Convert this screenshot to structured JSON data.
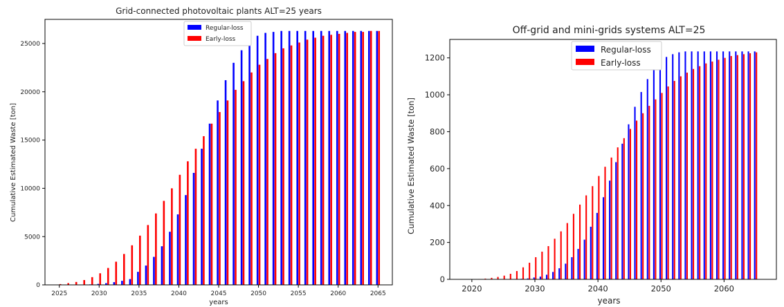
{
  "chart_data": [
    {
      "type": "bar",
      "title": "Grid-connected photovoltaic plants     ALT=25 years",
      "xlabel": "years",
      "ylabel": "Cumulative Estimated Waste [ton]",
      "xlim": [
        2023.2,
        2066.8
      ],
      "ylim": [
        0,
        27500
      ],
      "xticks": [
        2025,
        2030,
        2035,
        2040,
        2045,
        2050,
        2055,
        2060,
        2065
      ],
      "xtick_labels": [
        "2025",
        "2030",
        "2035",
        "2040",
        "2045",
        "2050",
        "2055",
        "2060",
        "2065"
      ],
      "yticks": [
        0,
        5000,
        10000,
        15000,
        20000,
        25000
      ],
      "ytick_labels": [
        "0",
        "5000",
        "10000",
        "15000",
        "20000",
        "25000"
      ],
      "grid": false,
      "legend_position": "top-center",
      "x": [
        2025,
        2026,
        2027,
        2028,
        2029,
        2030,
        2031,
        2032,
        2033,
        2034,
        2035,
        2036,
        2037,
        2038,
        2039,
        2040,
        2041,
        2042,
        2043,
        2044,
        2045,
        2046,
        2047,
        2048,
        2049,
        2050,
        2051,
        2052,
        2053,
        2054,
        2055,
        2056,
        2057,
        2058,
        2059,
        2060,
        2061,
        2062,
        2063,
        2064,
        2065
      ],
      "series": [
        {
          "name": "Regular-loss",
          "color": "#0000ff",
          "values": [
            0,
            0,
            0,
            0,
            50,
            100,
            180,
            280,
            420,
            600,
            1350,
            2000,
            2900,
            4000,
            5500,
            7300,
            9300,
            11600,
            14100,
            16700,
            19100,
            21200,
            23000,
            24300,
            25200,
            25800,
            26100,
            26200,
            26300,
            26300,
            26300,
            26300,
            26300,
            26300,
            26300,
            26300,
            26300,
            26300,
            26300,
            26300,
            26300
          ]
        },
        {
          "name": "Early-loss",
          "color": "#ff0000",
          "values": [
            80,
            180,
            300,
            500,
            800,
            1200,
            1750,
            2400,
            3200,
            4100,
            5100,
            6200,
            7400,
            8700,
            10000,
            11400,
            12800,
            14100,
            15400,
            16700,
            17900,
            19100,
            20200,
            21100,
            22000,
            22800,
            23400,
            24000,
            24500,
            24800,
            25100,
            25400,
            25600,
            25800,
            25900,
            26000,
            26100,
            26200,
            26200,
            26300,
            26300
          ]
        }
      ]
    },
    {
      "type": "bar",
      "title": "Off-grid and mini-grids systems    ALT=25",
      "xlabel": "years",
      "ylabel": "Cumulative Estimated Waste [ton]",
      "xlim": [
        2016.5,
        2068.3
      ],
      "ylim": [
        0,
        1300
      ],
      "xticks": [
        2020,
        2030,
        2040,
        2050,
        2060
      ],
      "xtick_labels": [
        "2020",
        "2030",
        "2040",
        "2050",
        "2060"
      ],
      "yticks": [
        0,
        200,
        400,
        600,
        800,
        1000,
        1200
      ],
      "ytick_labels": [
        "0",
        "200",
        "400",
        "600",
        "800",
        "1000",
        "1200"
      ],
      "grid": false,
      "legend_position": "top-center",
      "x": [
        2020,
        2021,
        2022,
        2023,
        2024,
        2025,
        2026,
        2027,
        2028,
        2029,
        2030,
        2031,
        2032,
        2033,
        2034,
        2035,
        2036,
        2037,
        2038,
        2039,
        2040,
        2041,
        2042,
        2043,
        2044,
        2045,
        2046,
        2047,
        2048,
        2049,
        2050,
        2051,
        2052,
        2053,
        2054,
        2055,
        2056,
        2057,
        2058,
        2059,
        2060,
        2061,
        2062,
        2063,
        2064,
        2065
      ],
      "series": [
        {
          "name": "Regular-loss",
          "color": "#0000ff",
          "values": [
            0,
            0,
            0,
            0,
            0,
            0,
            1,
            2,
            3,
            5,
            10,
            15,
            25,
            40,
            60,
            85,
            120,
            165,
            215,
            285,
            360,
            445,
            535,
            635,
            735,
            840,
            935,
            1015,
            1085,
            1140,
            1180,
            1205,
            1220,
            1230,
            1235,
            1235,
            1235,
            1235,
            1235,
            1235,
            1235,
            1235,
            1235,
            1235,
            1235,
            1235
          ]
        },
        {
          "name": "Early-loss",
          "color": "#ff0000",
          "values": [
            0,
            2,
            4,
            8,
            13,
            20,
            30,
            45,
            65,
            90,
            120,
            150,
            180,
            220,
            260,
            305,
            355,
            405,
            455,
            505,
            560,
            610,
            660,
            715,
            765,
            815,
            860,
            900,
            940,
            975,
            1010,
            1045,
            1075,
            1100,
            1120,
            1140,
            1155,
            1170,
            1180,
            1190,
            1200,
            1210,
            1215,
            1220,
            1225,
            1230
          ]
        }
      ]
    }
  ]
}
